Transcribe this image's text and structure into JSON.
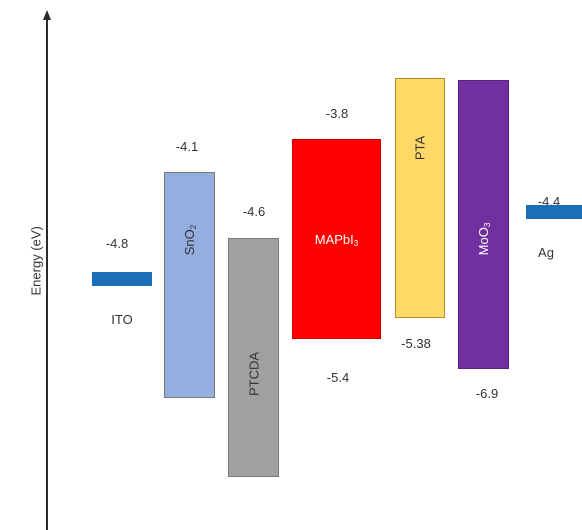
{
  "axis": {
    "label": "Energy (eV)"
  },
  "electrodes": {
    "ito": {
      "name": "ITO",
      "work_function": "-4.8",
      "color": "#1a6fb8"
    },
    "ag": {
      "name": "Ag",
      "work_function": "-4.4",
      "color": "#1a6fb8"
    }
  },
  "layers": {
    "sno2": {
      "name": "SnO",
      "subscript": "2",
      "top": "-4.1",
      "color": "#94aee0"
    },
    "ptcda": {
      "name": "PTCDA",
      "top": "-4.6",
      "color": "#a0a0a0"
    },
    "mapbi3": {
      "name": "MAPbI",
      "subscript": "3",
      "top": "-3.8",
      "bottom": "-5.4",
      "color": "#ff0000"
    },
    "pta": {
      "name": "PTA",
      "bottom": "-5.38",
      "color": "#ffd966"
    },
    "moo3": {
      "name": "MoO",
      "subscript": "3",
      "bottom": "-6.9",
      "color": "#7030a0"
    }
  }
}
